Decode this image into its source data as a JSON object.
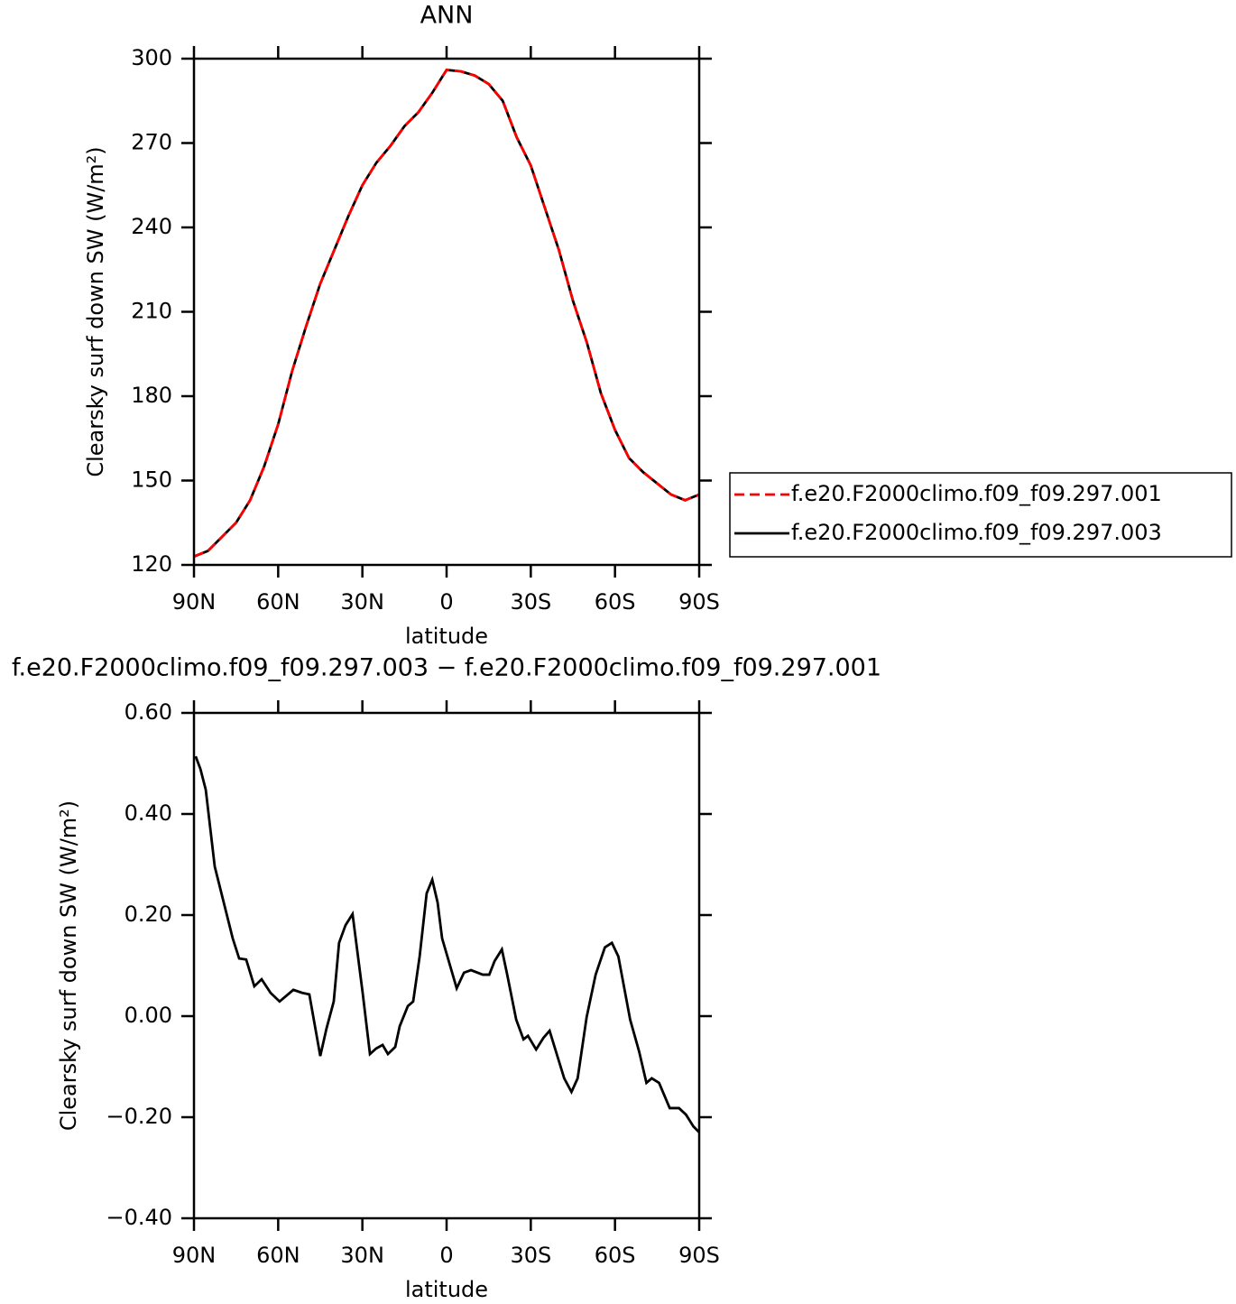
{
  "chart_data": [
    {
      "type": "line",
      "title": "ANN",
      "xlabel": "latitude",
      "ylabel": "Clearsky surf down SW (W/m²)",
      "x": [
        90,
        85,
        80,
        75,
        70,
        65,
        60,
        55,
        50,
        45,
        40,
        35,
        30,
        25,
        20,
        15,
        10,
        5,
        0,
        -5,
        -10,
        -15,
        -20,
        -25,
        -30,
        -35,
        -40,
        -45,
        -50,
        -55,
        -60,
        -65,
        -70,
        -75,
        -80,
        -85,
        -90
      ],
      "series": [
        {
          "name": "f.e20.F2000climo.f09_f09.297.003",
          "color": "#000000",
          "style": "solid",
          "values": [
            123,
            125,
            130,
            135,
            143,
            155,
            170,
            189,
            205,
            220,
            232,
            244,
            255,
            263,
            269,
            276,
            281,
            288,
            296,
            295.5,
            294,
            291,
            285,
            272,
            262,
            247,
            232,
            214,
            199,
            181,
            168,
            158,
            153,
            149,
            145,
            143,
            145
          ]
        },
        {
          "name": "f.e20.F2000climo.f09_f09.297.001",
          "color": "#ff0000",
          "style": "dashed",
          "values": [
            123,
            125,
            130,
            135,
            143,
            155,
            170,
            189,
            205,
            220,
            232,
            244,
            255,
            263,
            269,
            276,
            281,
            288,
            296,
            295.5,
            294,
            291,
            285,
            272,
            262,
            247,
            232,
            214,
            199,
            181,
            168,
            158,
            153,
            149,
            145,
            143,
            145
          ]
        }
      ],
      "xlim": [
        90,
        -90
      ],
      "xticks": [
        {
          "value": 90,
          "label": "90N"
        },
        {
          "value": 60,
          "label": "60N"
        },
        {
          "value": 30,
          "label": "30N"
        },
        0,
        {
          "value": -30,
          "label": "30S"
        },
        {
          "value": -60,
          "label": "60S"
        },
        {
          "value": -90,
          "label": "90S"
        }
      ],
      "ylim": [
        120,
        300
      ],
      "yticks": [
        120,
        150,
        180,
        210,
        240,
        270,
        300
      ],
      "legend": "right"
    },
    {
      "type": "line",
      "title": "f.e20.F2000climo.f09_f09.297.003 − f.e20.F2000climo.f09_f09.297.001",
      "xlabel": "latitude",
      "ylabel": "Clearsky surf down SW (W/m²)",
      "x": [
        89.4,
        87.7,
        85.8,
        82.6,
        79.4,
        76.2,
        73.9,
        71.4,
        68.5,
        65.9,
        62.7,
        59.5,
        54.6,
        51.4,
        48.9,
        45.0,
        42.8,
        40.2,
        38.3,
        36.0,
        33.5,
        29.9,
        27.3,
        25.1,
        22.8,
        20.9,
        18.3,
        16.7,
        13.8,
        11.9,
        9.6,
        7.1,
        5.1,
        3.2,
        1.6,
        -3.6,
        -6.2,
        -8.7,
        -12.9,
        -15.2,
        -17.1,
        -19.7,
        -21.6,
        -24.8,
        -27.4,
        -29.0,
        -31.9,
        -34.5,
        -36.7,
        -41.9,
        -44.5,
        -46.7,
        -49.9,
        -53.1,
        -56.4,
        -58.9,
        -61.2,
        -65.4,
        -68.6,
        -71.2,
        -73.1,
        -75.7,
        -79.5,
        -82.8,
        -85.3,
        -87.9,
        -90
      ],
      "series": [
        {
          "color": "#000000",
          "style": "solid",
          "values": [
            0.514,
            0.489,
            0.448,
            0.296,
            0.225,
            0.154,
            0.114,
            0.112,
            0.059,
            0.073,
            0.046,
            0.029,
            0.052,
            0.046,
            0.043,
            -0.079,
            -0.025,
            0.029,
            0.145,
            0.18,
            0.202,
            0.046,
            -0.075,
            -0.064,
            -0.057,
            -0.075,
            -0.061,
            -0.02,
            0.02,
            0.029,
            0.118,
            0.243,
            0.27,
            0.225,
            0.154,
            0.055,
            0.086,
            0.091,
            0.082,
            0.082,
            0.109,
            0.132,
            0.082,
            -0.007,
            -0.046,
            -0.039,
            -0.066,
            -0.043,
            -0.029,
            -0.123,
            -0.15,
            -0.123,
            -0.002,
            0.082,
            0.136,
            0.145,
            0.118,
            -0.007,
            -0.07,
            -0.132,
            -0.123,
            -0.132,
            -0.182,
            -0.182,
            -0.195,
            -0.218,
            -0.23
          ]
        }
      ],
      "xlim": [
        90,
        -90
      ],
      "xticks": [
        {
          "value": 90,
          "label": "90N"
        },
        {
          "value": 60,
          "label": "60N"
        },
        {
          "value": 30,
          "label": "30N"
        },
        0,
        {
          "value": -30,
          "label": "30S"
        },
        {
          "value": -60,
          "label": "60S"
        },
        {
          "value": -90,
          "label": "90S"
        }
      ],
      "ylim": [
        -0.4,
        0.6
      ],
      "yticks": [
        {
          "value": -0.4,
          "label": "−0.40"
        },
        {
          "value": -0.2,
          "label": "−0.20"
        },
        {
          "value": 0,
          "label": "0.00"
        },
        {
          "value": 0.2,
          "label": "0.20"
        },
        {
          "value": 0.4,
          "label": "0.40"
        },
        {
          "value": 0.6,
          "label": "0.60"
        }
      ]
    }
  ]
}
